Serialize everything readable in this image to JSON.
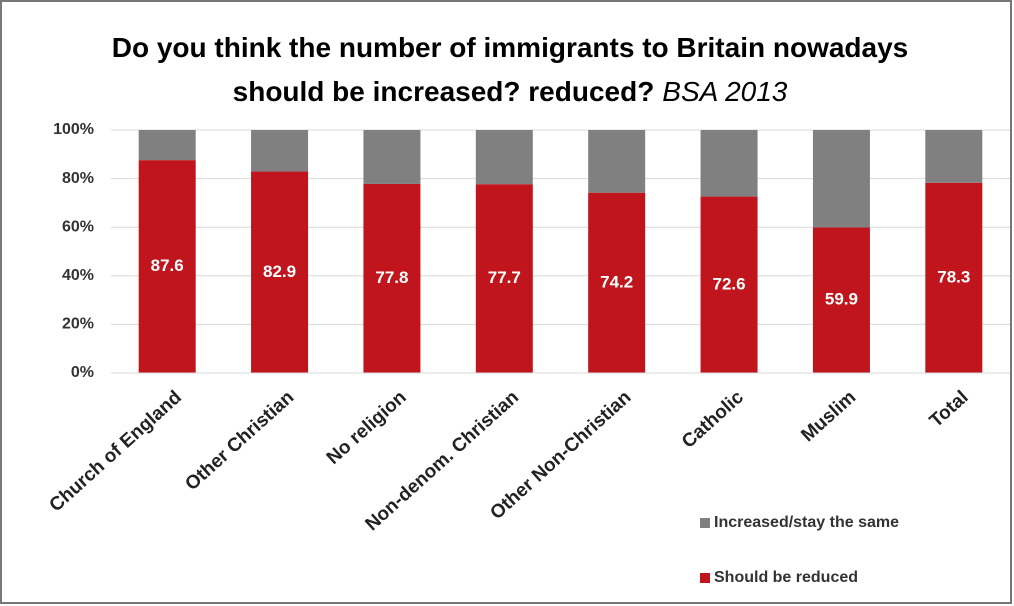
{
  "chart_data": {
    "type": "stacked_bar",
    "title": "Do you think the number of immigrants to Britain nowadays should be increased? reduced?",
    "subtitle": "BSA 2013",
    "categories": [
      "Church of England",
      "Other Christian",
      "No religion",
      "Non-denom. Christian",
      "Other Non-Christian",
      "Catholic",
      "Muslim",
      "Total"
    ],
    "series": [
      {
        "name": "Should be reduced",
        "color": "#c0151c",
        "values": [
          87.6,
          82.9,
          77.8,
          77.7,
          74.2,
          72.6,
          59.9,
          78.3
        ]
      },
      {
        "name": "Increased/stay the same",
        "color": "#808080",
        "values": [
          12.4,
          17.1,
          22.2,
          22.3,
          25.8,
          27.4,
          40.1,
          21.7
        ]
      }
    ],
    "ylim": [
      0,
      100
    ],
    "yticks": [
      {
        "value": 0,
        "label": "0%"
      },
      {
        "value": 20,
        "label": "20%"
      },
      {
        "value": 40,
        "label": "40%"
      },
      {
        "value": 60,
        "label": "60%"
      },
      {
        "value": 80,
        "label": "80%"
      },
      {
        "value": 100,
        "label": "100%"
      }
    ],
    "grid": true,
    "legend": "bottom-right"
  }
}
